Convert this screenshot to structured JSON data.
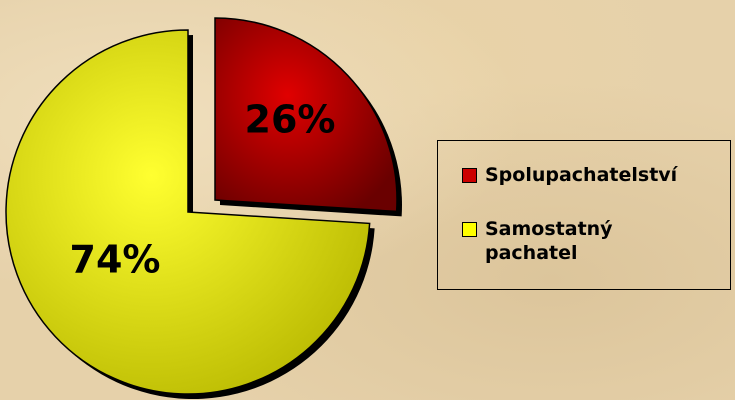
{
  "chart_data": {
    "type": "pie",
    "categories": [
      "Spolupachatelství",
      "Samostatný pachatel"
    ],
    "values": [
      26,
      74
    ],
    "value_labels": [
      "26%",
      "74%"
    ],
    "colors": [
      "#cc0000",
      "#ffff00"
    ],
    "legend": "right"
  }
}
